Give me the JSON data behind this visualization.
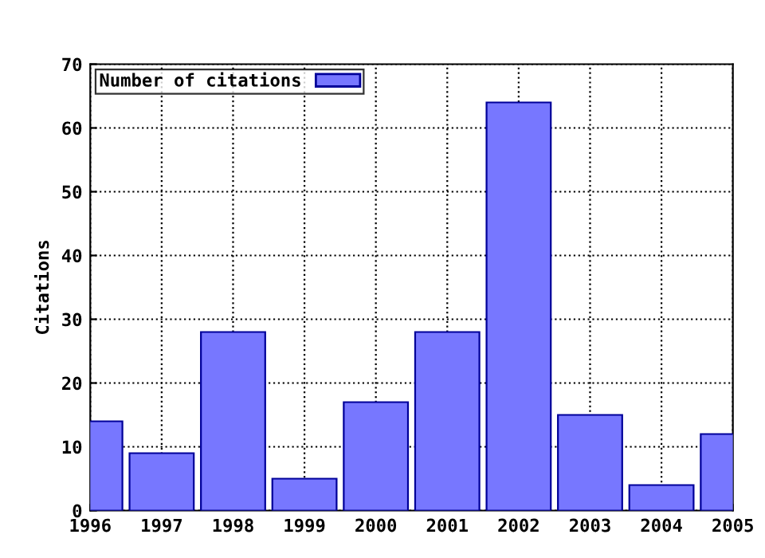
{
  "chart_data": {
    "type": "bar",
    "ylabel": "Citations",
    "x": [
      1996,
      1997,
      1998,
      1999,
      2000,
      2001,
      2002,
      2003,
      2004,
      2005
    ],
    "series": [
      {
        "name": "Number of citations",
        "color": "#7777ff",
        "values": [
          14,
          9,
          28,
          5,
          17,
          28,
          64,
          15,
          4,
          12
        ]
      }
    ],
    "xlim": [
      1996,
      2005
    ],
    "xticks": [
      1996,
      1997,
      1998,
      1999,
      2000,
      2001,
      2002,
      2003,
      2004,
      2005
    ],
    "ylim": [
      0,
      70
    ],
    "yticks": [
      0,
      10,
      20,
      30,
      40,
      50,
      60,
      70
    ],
    "grid": true,
    "legend": "top left"
  }
}
